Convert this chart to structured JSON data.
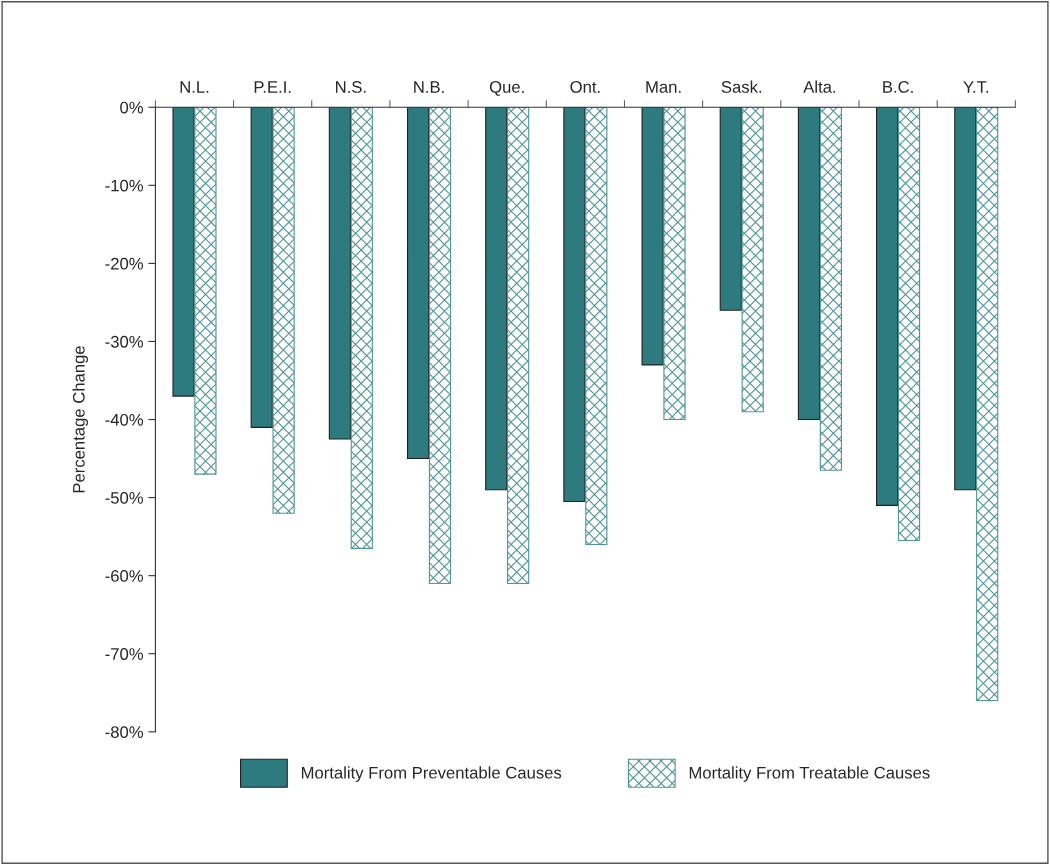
{
  "chart_data": {
    "type": "bar",
    "ylabel": "Percentage Change",
    "categories": [
      "N.L.",
      "P.E.I.",
      "N.S.",
      "N.B.",
      "Que.",
      "Ont.",
      "Man.",
      "Sask.",
      "Alta.",
      "B.C.",
      "Y.T."
    ],
    "series": [
      {
        "name": "Mortality From Preventable Causes",
        "color": "#2e7b7f",
        "values": [
          -37,
          -41,
          -42.5,
          -45,
          -49,
          -50.5,
          -33,
          -26,
          -40,
          -51,
          -49
        ]
      },
      {
        "name": "Mortality From Treatable Causes",
        "color": "#4f9599",
        "values": [
          -47,
          -52,
          -56.5,
          -61,
          -61,
          -56,
          -40,
          -39,
          -46.5,
          -55.5,
          -76
        ]
      }
    ],
    "ylim": [
      -80,
      0
    ],
    "yticks": [
      {
        "value": 0,
        "label": "0%"
      },
      {
        "value": -10,
        "label": "-10%"
      },
      {
        "value": -20,
        "label": "-20%"
      },
      {
        "value": -30,
        "label": "-30%"
      },
      {
        "value": -40,
        "label": "-40%"
      },
      {
        "value": -50,
        "label": "-50%"
      },
      {
        "value": -60,
        "label": "-60%"
      },
      {
        "value": -70,
        "label": "-70%"
      },
      {
        "value": -80,
        "label": "-80%"
      }
    ],
    "grid": false,
    "legend": "bottom"
  }
}
